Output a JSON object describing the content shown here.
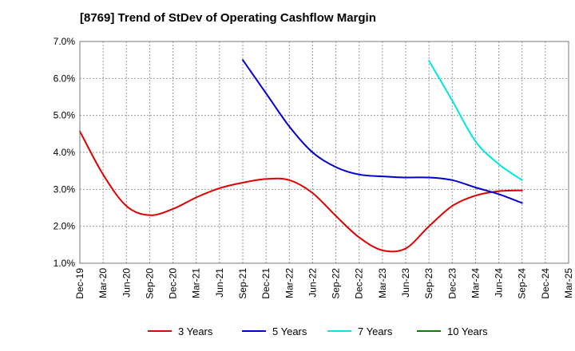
{
  "chart_data": {
    "type": "line",
    "title": "[8769]  Trend of StDev of Operating Cashflow Margin",
    "xlabel": "",
    "ylabel": "",
    "x": [
      "Dec-19",
      "Mar-20",
      "Jun-20",
      "Sep-20",
      "Dec-20",
      "Mar-21",
      "Jun-21",
      "Sep-21",
      "Dec-21",
      "Mar-22",
      "Jun-22",
      "Sep-22",
      "Dec-22",
      "Mar-23",
      "Jun-23",
      "Sep-23",
      "Dec-23",
      "Mar-24",
      "Jun-24",
      "Sep-24",
      "Dec-24",
      "Mar-25"
    ],
    "ylim": [
      1.0,
      7.0
    ],
    "yticks": [
      "1.0%",
      "2.0%",
      "3.0%",
      "4.0%",
      "5.0%",
      "6.0%",
      "7.0%"
    ],
    "grid": true,
    "legend_position": "bottom",
    "series": [
      {
        "name": "3 Years",
        "color": "#dd0000",
        "values": [
          4.57,
          3.4,
          2.55,
          2.3,
          2.47,
          2.78,
          3.03,
          3.18,
          3.28,
          3.25,
          2.9,
          2.28,
          1.7,
          1.35,
          1.4,
          2.0,
          2.55,
          2.83,
          2.95,
          2.97,
          null,
          null
        ]
      },
      {
        "name": "5 Years",
        "color": "#0000cc",
        "values": [
          null,
          null,
          null,
          null,
          null,
          null,
          null,
          6.5,
          5.6,
          4.7,
          4.0,
          3.6,
          3.4,
          3.35,
          3.32,
          3.32,
          3.25,
          3.05,
          2.87,
          2.63,
          null,
          null
        ]
      },
      {
        "name": "7 Years",
        "color": "#00e5e5",
        "values": [
          null,
          null,
          null,
          null,
          null,
          null,
          null,
          null,
          null,
          null,
          null,
          null,
          null,
          null,
          null,
          6.48,
          5.4,
          4.3,
          3.68,
          3.25,
          null,
          null
        ]
      },
      {
        "name": "10 Years",
        "color": "#008000",
        "values": [
          null,
          null,
          null,
          null,
          null,
          null,
          null,
          null,
          null,
          null,
          null,
          null,
          null,
          null,
          null,
          null,
          null,
          null,
          null,
          null,
          null,
          null
        ]
      }
    ]
  }
}
